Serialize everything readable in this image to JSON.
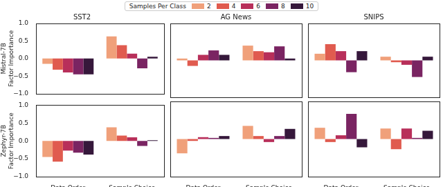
{
  "legend_title": "Samples Per Class",
  "legend": "top",
  "chart_data": [
    {
      "type": "bar",
      "title": "SST2",
      "y_label": "Mistral-7B\nFactor Importance",
      "categories": [
        "Data Order",
        "Sample Choice"
      ],
      "ylim": [
        -1,
        1
      ],
      "yticks": [
        {
          "value": -1,
          "label": "−1.0"
        },
        {
          "value": -0.5,
          "label": "−0.5"
        },
        {
          "value": 0,
          "label": "0.0"
        },
        {
          "value": 0.5,
          "label": "0.5"
        },
        {
          "value": 1,
          "label": "1.0"
        }
      ],
      "grid": false,
      "tick_labels": "y",
      "series": [
        {
          "name": "2",
          "color": "#f0a07a",
          "values": [
            -0.15,
            0.63
          ]
        },
        {
          "name": "4",
          "color": "#e05b4f",
          "values": [
            -0.32,
            0.38
          ]
        },
        {
          "name": "6",
          "color": "#b82f5a",
          "values": [
            -0.4,
            0.14
          ]
        },
        {
          "name": "8",
          "color": "#7a2462",
          "values": [
            -0.45,
            -0.28
          ]
        },
        {
          "name": "10",
          "color": "#36183b",
          "values": [
            -0.45,
            0.05
          ]
        }
      ]
    },
    {
      "type": "bar",
      "title": "AG News",
      "categories": [
        "Data Order",
        "Sample Choice"
      ],
      "ylim": [
        -1,
        1
      ],
      "yticks": [
        {
          "value": -1,
          "label": "−1.0"
        },
        {
          "value": -0.5,
          "label": "−0.5"
        },
        {
          "value": 0,
          "label": "0.0"
        },
        {
          "value": 0.5,
          "label": "0.5"
        },
        {
          "value": 1,
          "label": "1.0"
        }
      ],
      "grid": false,
      "tick_labels": false,
      "series": [
        {
          "name": "2",
          "color": "#f0a07a",
          "values": [
            0.05,
            0.4
          ]
        },
        {
          "name": "4",
          "color": "#e05b4f",
          "values": [
            -0.15,
            0.25
          ]
        },
        {
          "name": "6",
          "color": "#b82f5a",
          "values": [
            0.15,
            0.22
          ]
        },
        {
          "name": "8",
          "color": "#7a2462",
          "values": [
            0.27,
            0.38
          ]
        },
        {
          "name": "10",
          "color": "#36183b",
          "values": [
            0.15,
            0.05
          ]
        }
      ]
    },
    {
      "type": "bar",
      "title": "SNIPS",
      "categories": [
        "Data Order",
        "Sample Choice"
      ],
      "ylim": [
        -1,
        1
      ],
      "yticks": [
        {
          "value": -1,
          "label": "−1.0"
        },
        {
          "value": -0.5,
          "label": "−0.5"
        },
        {
          "value": 0,
          "label": "0.0"
        },
        {
          "value": 0.5,
          "label": "0.5"
        },
        {
          "value": 1,
          "label": "1.0"
        }
      ],
      "grid": false,
      "tick_labels": false,
      "series": [
        {
          "name": "2",
          "color": "#f0a07a",
          "values": [
            0.18,
            0.1
          ]
        },
        {
          "name": "4",
          "color": "#e05b4f",
          "values": [
            0.44,
            -0.05
          ]
        },
        {
          "name": "6",
          "color": "#b82f5a",
          "values": [
            0.25,
            -0.12
          ]
        },
        {
          "name": "8",
          "color": "#7a2462",
          "values": [
            -0.32,
            -0.45
          ]
        },
        {
          "name": "10",
          "color": "#36183b",
          "values": [
            0.25,
            0.1
          ]
        }
      ]
    },
    {
      "type": "bar",
      "y_label": "Zephyr-7B\nFactor Importance",
      "categories": [
        "Data Order",
        "Sample Choice"
      ],
      "ylim": [
        -1,
        1
      ],
      "yticks": [
        {
          "value": -1,
          "label": "−1.0"
        },
        {
          "value": -0.5,
          "label": "−0.5"
        },
        {
          "value": 0,
          "label": "0.0"
        },
        {
          "value": 0.5,
          "label": "0.5"
        },
        {
          "value": 1,
          "label": "1.0"
        }
      ],
      "grid": false,
      "tick_labels": true,
      "series": [
        {
          "name": "2",
          "color": "#f0a07a",
          "values": [
            -0.45,
            0.38
          ]
        },
        {
          "name": "4",
          "color": "#e05b4f",
          "values": [
            -0.58,
            0.15
          ]
        },
        {
          "name": "6",
          "color": "#b82f5a",
          "values": [
            -0.27,
            0.1
          ]
        },
        {
          "name": "8",
          "color": "#7a2462",
          "values": [
            -0.33,
            -0.14
          ]
        },
        {
          "name": "10",
          "color": "#36183b",
          "values": [
            -0.38,
            0.02
          ]
        }
      ]
    },
    {
      "type": "bar",
      "categories": [
        "Data Order",
        "Sample Choice"
      ],
      "ylim": [
        -1,
        1
      ],
      "yticks": [
        {
          "value": -1,
          "label": "−1.0"
        },
        {
          "value": -0.5,
          "label": "−0.5"
        },
        {
          "value": 0,
          "label": "0.0"
        },
        {
          "value": 0.5,
          "label": "0.5"
        },
        {
          "value": 1,
          "label": "1.0"
        }
      ],
      "grid": false,
      "tick_labels": "x",
      "series": [
        {
          "name": "2",
          "color": "#f0a07a",
          "values": [
            -0.38,
            0.35
          ]
        },
        {
          "name": "4",
          "color": "#e05b4f",
          "values": [
            -0.05,
            0.08
          ]
        },
        {
          "name": "6",
          "color": "#b82f5a",
          "values": [
            0.05,
            -0.08
          ]
        },
        {
          "name": "8",
          "color": "#7a2462",
          "values": [
            0.03,
            0.08
          ]
        },
        {
          "name": "10",
          "color": "#36183b",
          "values": [
            0.08,
            0.27
          ]
        }
      ]
    },
    {
      "type": "bar",
      "categories": [
        "Data Order",
        "Sample Choice"
      ],
      "ylim": [
        -1,
        1
      ],
      "yticks": [
        {
          "value": -1,
          "label": "−1.0"
        },
        {
          "value": -0.5,
          "label": "−0.5"
        },
        {
          "value": 0,
          "label": "0.0"
        },
        {
          "value": 0.5,
          "label": "0.5"
        },
        {
          "value": 1,
          "label": "1.0"
        }
      ],
      "grid": false,
      "tick_labels": "x",
      "series": [
        {
          "name": "2",
          "color": "#f0a07a",
          "values": [
            0.3,
            0.28
          ]
        },
        {
          "name": "4",
          "color": "#e05b4f",
          "values": [
            -0.08,
            -0.27
          ]
        },
        {
          "name": "6",
          "color": "#b82f5a",
          "values": [
            0.1,
            0.28
          ]
        },
        {
          "name": "8",
          "color": "#7a2462",
          "values": [
            0.67,
            0.03
          ]
        },
        {
          "name": "10",
          "color": "#36183b",
          "values": [
            -0.22,
            0.22
          ]
        }
      ]
    }
  ]
}
